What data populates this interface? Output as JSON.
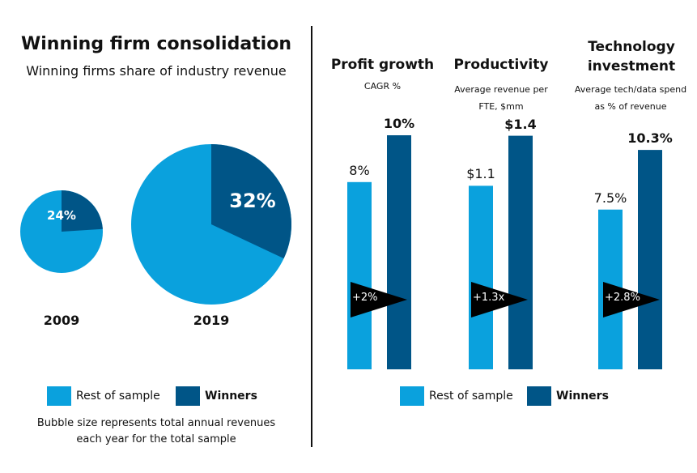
{
  "colors": {
    "rest": "#0aa1dd",
    "winners": "#005587",
    "arrow": "#000000"
  },
  "left": {
    "title": "Winning firm consolidation",
    "subtitle": "Winning firms share of industry revenue",
    "legend": {
      "rest": "Rest of sample",
      "winners": "Winners"
    },
    "note_line1": "Bubble size represents total annual revenues",
    "note_line2": "each year for the total sample"
  },
  "right": {
    "legend": {
      "rest": "Rest of sample",
      "winners": "Winners"
    }
  },
  "chart_data": [
    {
      "type": "pie",
      "title": "2009",
      "series": [
        {
          "name": "Winners",
          "value": 24,
          "label": "24%"
        },
        {
          "name": "Rest of sample",
          "value": 76
        }
      ]
    },
    {
      "type": "pie",
      "title": "2019",
      "series": [
        {
          "name": "Winners",
          "value": 32,
          "label": "32%"
        },
        {
          "name": "Rest of sample",
          "value": 68
        }
      ]
    },
    {
      "type": "bar",
      "title": "Profit growth",
      "subtitle": "CAGR %",
      "categories": [
        "Rest of sample",
        "Winners"
      ],
      "values": [
        8,
        10
      ],
      "labels": [
        "8%",
        "10%"
      ],
      "delta": "+2%"
    },
    {
      "type": "bar",
      "title": "Productivity",
      "subtitle": "Average revenue per FTE, $mm",
      "categories": [
        "Rest of sample",
        "Winners"
      ],
      "values": [
        1.1,
        1.4
      ],
      "labels": [
        "$1.1",
        "$1.4"
      ],
      "delta": "+1.3x"
    },
    {
      "type": "bar",
      "title": "Technology investment",
      "subtitle": "Average tech/data spend as % of revenue",
      "categories": [
        "Rest of sample",
        "Winners"
      ],
      "values": [
        7.5,
        10.3
      ],
      "labels": [
        "7.5%",
        "10.3%"
      ],
      "delta": "+2.8%"
    }
  ]
}
